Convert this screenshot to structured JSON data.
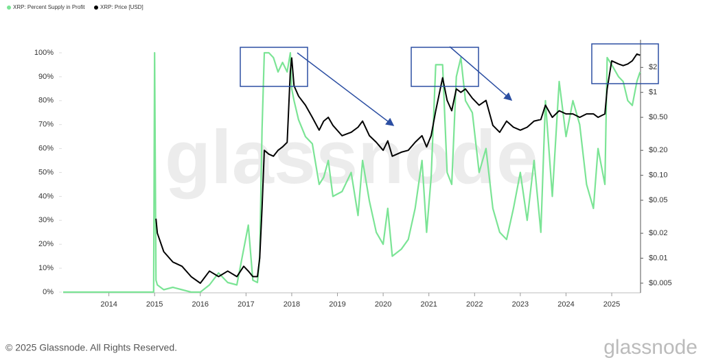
{
  "chart_data": {
    "type": "line",
    "watermark": "glassnode",
    "x": [
      2013.0,
      2014.0,
      2014.98,
      2015.0,
      2015.03,
      2015.06,
      2015.2,
      2015.4,
      2015.6,
      2015.8,
      2016.0,
      2016.2,
      2016.4,
      2016.6,
      2016.8,
      2016.95,
      2017.05,
      2017.15,
      2017.25,
      2017.3,
      2017.35,
      2017.4,
      2017.5,
      2017.6,
      2017.7,
      2017.8,
      2017.9,
      2017.97,
      2018.0,
      2018.05,
      2018.15,
      2018.3,
      2018.45,
      2018.6,
      2018.7,
      2018.8,
      2018.9,
      2019.1,
      2019.3,
      2019.45,
      2019.55,
      2019.7,
      2019.85,
      2020.0,
      2020.1,
      2020.2,
      2020.4,
      2020.55,
      2020.7,
      2020.85,
      2020.95,
      2021.05,
      2021.15,
      2021.3,
      2021.4,
      2021.5,
      2021.6,
      2021.7,
      2021.8,
      2021.95,
      2022.1,
      2022.25,
      2022.4,
      2022.55,
      2022.7,
      2022.85,
      2023.0,
      2023.15,
      2023.3,
      2023.45,
      2023.55,
      2023.7,
      2023.85,
      2024.0,
      2024.15,
      2024.3,
      2024.45,
      2024.6,
      2024.7,
      2024.85,
      2024.9,
      2025.0,
      2025.15,
      2025.25,
      2025.35,
      2025.45,
      2025.55,
      2025.62
    ],
    "series": [
      {
        "name": "XRP: Percent Supply in Profit",
        "color": "#7be495",
        "axis": "y",
        "values": [
          0,
          0,
          0,
          100,
          5,
          3,
          1,
          2,
          1,
          0,
          0,
          3,
          8,
          4,
          3,
          18,
          28,
          5,
          4,
          15,
          68,
          100,
          100,
          98,
          92,
          96,
          92,
          100,
          85,
          80,
          72,
          65,
          62,
          45,
          48,
          55,
          40,
          42,
          50,
          32,
          55,
          38,
          25,
          20,
          35,
          15,
          18,
          22,
          35,
          55,
          25,
          48,
          95,
          95,
          50,
          45,
          90,
          98,
          80,
          75,
          50,
          60,
          35,
          25,
          22,
          35,
          50,
          30,
          55,
          25,
          80,
          40,
          88,
          65,
          80,
          70,
          45,
          35,
          60,
          45,
          98,
          95,
          90,
          88,
          80,
          78,
          88,
          92
        ]
      },
      {
        "name": "XRP: Price [USD]",
        "color": "#000000",
        "axis": "y2",
        "values": [
          null,
          null,
          null,
          null,
          0.03,
          0.02,
          0.012,
          0.009,
          0.008,
          0.006,
          0.005,
          0.007,
          0.006,
          0.007,
          0.006,
          0.008,
          0.007,
          0.006,
          0.006,
          0.01,
          0.04,
          0.2,
          0.18,
          0.17,
          0.2,
          0.22,
          0.25,
          1.8,
          2.6,
          1.2,
          0.9,
          0.7,
          0.5,
          0.35,
          0.45,
          0.5,
          0.4,
          0.3,
          0.33,
          0.38,
          0.45,
          0.3,
          0.25,
          0.2,
          0.26,
          0.17,
          0.19,
          0.2,
          0.25,
          0.3,
          0.22,
          0.3,
          0.6,
          1.5,
          0.8,
          0.6,
          1.1,
          1.0,
          1.1,
          0.85,
          0.7,
          0.8,
          0.4,
          0.33,
          0.45,
          0.38,
          0.35,
          0.38,
          0.45,
          0.47,
          0.7,
          0.5,
          0.6,
          0.55,
          0.55,
          0.5,
          0.55,
          0.55,
          0.5,
          0.55,
          1.1,
          2.4,
          2.2,
          2.1,
          2.2,
          2.4,
          2.9,
          2.8
        ]
      }
    ],
    "xlim": [
      2013.0,
      2025.63
    ],
    "xticks": [
      2014,
      2015,
      2016,
      2017,
      2018,
      2019,
      2020,
      2021,
      2022,
      2023,
      2024,
      2025
    ],
    "ylim": [
      0,
      100
    ],
    "yticks": [
      {
        "value": 0,
        "label": "0%"
      },
      {
        "value": 10,
        "label": "10%"
      },
      {
        "value": 20,
        "label": "20%"
      },
      {
        "value": 30,
        "label": "30%"
      },
      {
        "value": 40,
        "label": "40%"
      },
      {
        "value": 50,
        "label": "50%"
      },
      {
        "value": 60,
        "label": "60%"
      },
      {
        "value": 70,
        "label": "70%"
      },
      {
        "value": 80,
        "label": "80%"
      },
      {
        "value": 90,
        "label": "90%"
      },
      {
        "value": 100,
        "label": "100%"
      }
    ],
    "y2lim": [
      0.0039,
      3.0
    ],
    "y2scale": "log",
    "y2ticks": [
      {
        "value": 0.005,
        "label": "$0.005"
      },
      {
        "value": 0.01,
        "label": "$0.01"
      },
      {
        "value": 0.02,
        "label": "$0.02"
      },
      {
        "value": 0.05,
        "label": "$0.05"
      },
      {
        "value": 0.1,
        "label": "$0.10"
      },
      {
        "value": 0.2,
        "label": "$0.20"
      },
      {
        "value": 0.5,
        "label": "$0.50"
      },
      {
        "value": 1,
        "label": "$1"
      },
      {
        "value": 2,
        "label": "$2"
      }
    ],
    "grid": false
  },
  "footer": {
    "copyright": "© 2025 Glassnode. All Rights Reserved.",
    "logo": "glassnode"
  }
}
